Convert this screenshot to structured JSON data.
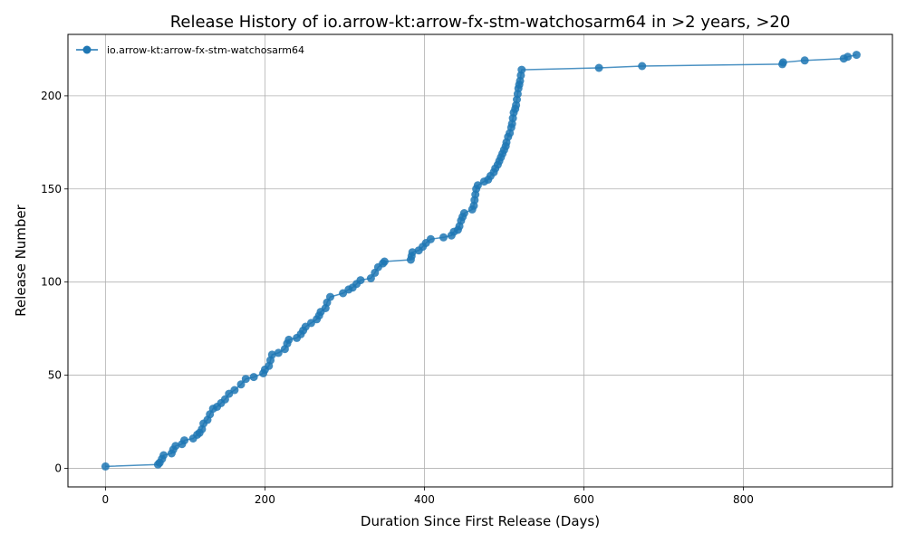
{
  "chart_data": {
    "type": "line",
    "title": "Release History of io.arrow-kt:arrow-fx-stm-watchosarm64 in >2 years, >20",
    "xlabel": "Duration Since First Release (Days)",
    "ylabel": "Release Number",
    "xlim": [
      -47,
      987
    ],
    "ylim": [
      -10,
      233
    ],
    "xticks": [
      0,
      200,
      400,
      600,
      800
    ],
    "yticks": [
      0,
      50,
      100,
      150,
      200
    ],
    "grid": true,
    "legend_position": "top-left",
    "series": [
      {
        "name": "io.arrow-kt:arrow-fx-stm-watchosarm64",
        "color": "#1f77b4",
        "marker": "circle",
        "points": [
          [
            0,
            1
          ],
          [
            66,
            2
          ],
          [
            68,
            3
          ],
          [
            71,
            5
          ],
          [
            73,
            7
          ],
          [
            83,
            8
          ],
          [
            85,
            10
          ],
          [
            88,
            12
          ],
          [
            96,
            13
          ],
          [
            99,
            15
          ],
          [
            110,
            16
          ],
          [
            115,
            18
          ],
          [
            118,
            19
          ],
          [
            121,
            21
          ],
          [
            123,
            24
          ],
          [
            128,
            26
          ],
          [
            131,
            29
          ],
          [
            135,
            32
          ],
          [
            140,
            33
          ],
          [
            145,
            35
          ],
          [
            150,
            37
          ],
          [
            155,
            40
          ],
          [
            162,
            42
          ],
          [
            170,
            45
          ],
          [
            176,
            48
          ],
          [
            186,
            49
          ],
          [
            198,
            51
          ],
          [
            200,
            53
          ],
          [
            205,
            55
          ],
          [
            207,
            58
          ],
          [
            209,
            61
          ],
          [
            217,
            62
          ],
          [
            225,
            64
          ],
          [
            228,
            67
          ],
          [
            230,
            69
          ],
          [
            240,
            70
          ],
          [
            245,
            72
          ],
          [
            248,
            74
          ],
          [
            251,
            76
          ],
          [
            258,
            78
          ],
          [
            265,
            80
          ],
          [
            268,
            82
          ],
          [
            270,
            84
          ],
          [
            276,
            86
          ],
          [
            278,
            89
          ],
          [
            282,
            92
          ],
          [
            298,
            94
          ],
          [
            305,
            96
          ],
          [
            310,
            97
          ],
          [
            315,
            99
          ],
          [
            320,
            101
          ],
          [
            333,
            102
          ],
          [
            338,
            105
          ],
          [
            342,
            108
          ],
          [
            348,
            110
          ],
          [
            350,
            111
          ],
          [
            383,
            112
          ],
          [
            384,
            114
          ],
          [
            385,
            116
          ],
          [
            393,
            117
          ],
          [
            398,
            119
          ],
          [
            402,
            121
          ],
          [
            408,
            123
          ],
          [
            424,
            124
          ],
          [
            434,
            125
          ],
          [
            437,
            127
          ],
          [
            442,
            128
          ],
          [
            444,
            130
          ],
          [
            446,
            133
          ],
          [
            448,
            135
          ],
          [
            450,
            137
          ],
          [
            460,
            139
          ],
          [
            462,
            141
          ],
          [
            463,
            144
          ],
          [
            464,
            147
          ],
          [
            465,
            150
          ],
          [
            467,
            152
          ],
          [
            475,
            154
          ],
          [
            480,
            155
          ],
          [
            483,
            157
          ],
          [
            487,
            159
          ],
          [
            489,
            161
          ],
          [
            492,
            163
          ],
          [
            494,
            165
          ],
          [
            496,
            167
          ],
          [
            498,
            169
          ],
          [
            500,
            171
          ],
          [
            502,
            173
          ],
          [
            503,
            175
          ],
          [
            505,
            178
          ],
          [
            507,
            180
          ],
          [
            509,
            183
          ],
          [
            510,
            185
          ],
          [
            511,
            188
          ],
          [
            512,
            191
          ],
          [
            514,
            193
          ],
          [
            515,
            195
          ],
          [
            516,
            198
          ],
          [
            517,
            201
          ],
          [
            518,
            204
          ],
          [
            519,
            206
          ],
          [
            520,
            208
          ],
          [
            521,
            211
          ],
          [
            522,
            214
          ],
          [
            619,
            215
          ],
          [
            673,
            216
          ],
          [
            849,
            217
          ],
          [
            850,
            218
          ],
          [
            877,
            219
          ],
          [
            926,
            220
          ],
          [
            931,
            221
          ],
          [
            942,
            222
          ]
        ]
      }
    ]
  }
}
